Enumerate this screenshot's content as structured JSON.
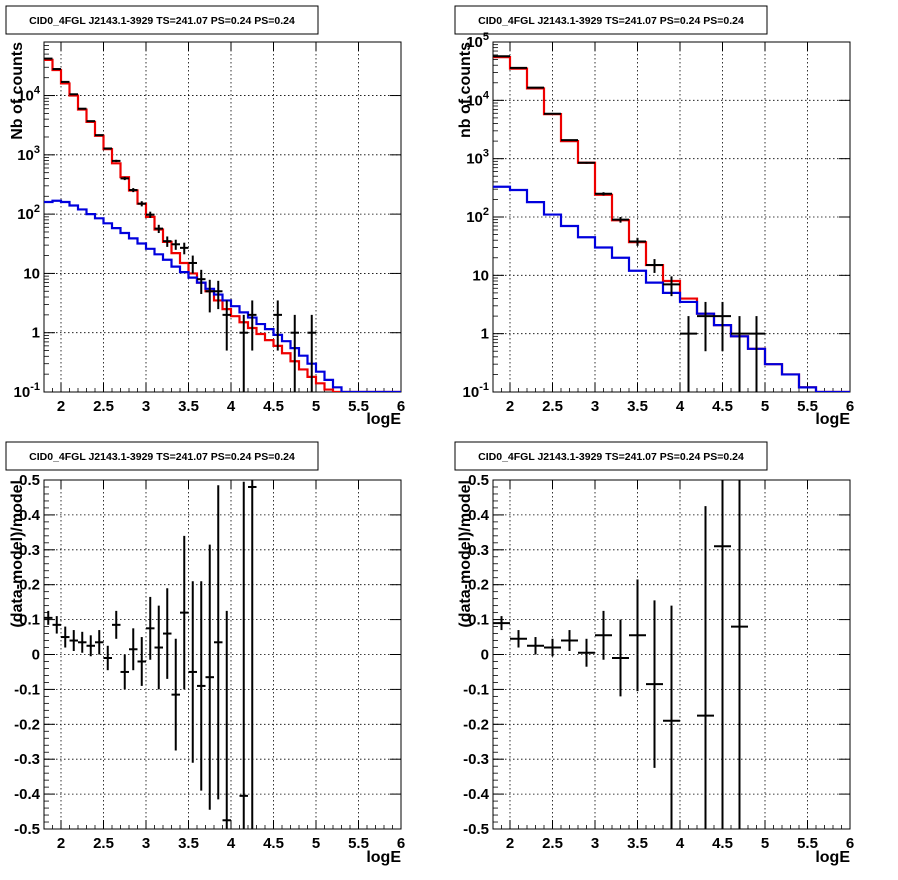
{
  "colors": {
    "data": "#000000",
    "total_model": "#ee0000",
    "source_model": "#0000dd",
    "grid": "#000000"
  },
  "chart_data": [
    {
      "type": "step",
      "title": "CID0_4FGL J2143.1-3929 TS=241.07 PS=0.24 PS=0.24",
      "xlabel": "logE",
      "ylabel": "Nb of counts",
      "xlim": [
        1.8,
        6
      ],
      "ylim": [
        0.1,
        80000
      ],
      "yscale": "log",
      "grid": true,
      "xticks": [
        "2",
        "2.5",
        "3",
        "3.5",
        "4",
        "4.5",
        "5",
        "5.5",
        "6"
      ],
      "yticks": [
        "10^-1",
        "1",
        "10",
        "10^2",
        "10^3",
        "10^4"
      ],
      "bin_edges": [
        1.8,
        1.9,
        2.0,
        2.1,
        2.2,
        2.3,
        2.4,
        2.5,
        2.6,
        2.7,
        2.8,
        2.9,
        3.0,
        3.1,
        3.2,
        3.3,
        3.4,
        3.5,
        3.6,
        3.7,
        3.8,
        3.9,
        4.0,
        4.1,
        4.2,
        4.3,
        4.4,
        4.5,
        4.6,
        4.7,
        4.8,
        4.9,
        5.0,
        5.1,
        5.2,
        5.3,
        5.4,
        5.5,
        5.6,
        5.7,
        5.8,
        5.9,
        6.0
      ],
      "series": [
        {
          "role": "total_model",
          "values": [
            40000,
            27000,
            16000,
            10000,
            5800,
            3600,
            2100,
            1250,
            720,
            420,
            250,
            150,
            90,
            55,
            34,
            22,
            15,
            10,
            7,
            5,
            3.5,
            2.5,
            1.9,
            1.5,
            1.2,
            0.95,
            0.75,
            0.6,
            0.45,
            0.33,
            0.24,
            0.18,
            0.14,
            0.11,
            0.1,
            0.1,
            0.1,
            0.1,
            0.1,
            0.1,
            0.1,
            0.1
          ]
        },
        {
          "role": "source_model",
          "values": [
            160,
            168,
            160,
            140,
            120,
            100,
            85,
            70,
            58,
            48,
            39,
            32,
            26,
            21,
            17,
            13,
            10.5,
            8.5,
            7,
            5.5,
            4.4,
            3.5,
            2.8,
            2.2,
            1.8,
            1.4,
            1.15,
            0.92,
            0.72,
            0.55,
            0.41,
            0.3,
            0.22,
            0.16,
            0.12,
            0.1,
            0.1,
            0.1,
            0.1,
            0.1,
            0.1,
            0.1
          ]
        },
        {
          "role": "data",
          "points": [
            {
              "x": 1.85,
              "y": 42000,
              "err": 300
            },
            {
              "x": 1.95,
              "y": 28000,
              "err": 250
            },
            {
              "x": 2.05,
              "y": 17000,
              "err": 200
            },
            {
              "x": 2.15,
              "y": 10500,
              "err": 150
            },
            {
              "x": 2.25,
              "y": 6000,
              "err": 100
            },
            {
              "x": 2.35,
              "y": 3700,
              "err": 80
            },
            {
              "x": 2.45,
              "y": 2150,
              "err": 60
            },
            {
              "x": 2.55,
              "y": 1280,
              "err": 45
            },
            {
              "x": 2.65,
              "y": 790,
              "err": 35
            },
            {
              "x": 2.75,
              "y": 400,
              "err": 25
            },
            {
              "x": 2.85,
              "y": 255,
              "err": 20
            },
            {
              "x": 2.95,
              "y": 150,
              "err": 15
            },
            {
              "x": 3.05,
              "y": 98,
              "err": 12
            },
            {
              "x": 3.15,
              "y": 57,
              "err": 9
            },
            {
              "x": 3.25,
              "y": 35,
              "err": 7
            },
            {
              "x": 3.35,
              "y": 31,
              "err": 6
            },
            {
              "x": 3.45,
              "y": 27,
              "err": 6
            },
            {
              "x": 3.55,
              "y": 15,
              "err": 5
            },
            {
              "x": 3.65,
              "y": 8,
              "err": 3.5
            },
            {
              "x": 3.75,
              "y": 5,
              "err": 2.8
            },
            {
              "x": 3.85,
              "y": 5,
              "err": 2.5
            },
            {
              "x": 3.95,
              "y": 2,
              "err": 1.5
            },
            {
              "x": 4.15,
              "y": 1,
              "err": 1
            },
            {
              "x": 4.25,
              "y": 2,
              "err": 1.5
            },
            {
              "x": 4.55,
              "y": 2,
              "err": 1.5
            },
            {
              "x": 4.75,
              "y": 1,
              "err": 1
            },
            {
              "x": 4.95,
              "y": 1,
              "err": 1
            }
          ]
        }
      ]
    },
    {
      "type": "step",
      "title": "CID0_4FGL J2143.1-3929 TS=241.07 PS=0.24 PS=0.24",
      "xlabel": "logE",
      "ylabel": "nb of counts",
      "xlim": [
        1.8,
        6
      ],
      "ylim": [
        0.1,
        100000
      ],
      "yscale": "log",
      "grid": true,
      "xticks": [
        "2",
        "2.5",
        "3",
        "3.5",
        "4",
        "4.5",
        "5",
        "5.5",
        "6"
      ],
      "yticks": [
        "10^-1",
        "1",
        "10",
        "10^2",
        "10^3",
        "10^4",
        "10^5"
      ],
      "bin_edges": [
        1.8,
        2.0,
        2.2,
        2.4,
        2.6,
        2.8,
        3.0,
        3.2,
        3.4,
        3.6,
        3.8,
        4.0,
        4.2,
        4.4,
        4.6,
        4.8,
        5.0,
        5.2,
        5.4,
        5.6,
        5.8,
        6.0
      ],
      "series": [
        {
          "role": "total_model",
          "values": [
            55000,
            35000,
            16000,
            5800,
            2000,
            850,
            240,
            88,
            37,
            15,
            8,
            4,
            2.2,
            1.4,
            0.9,
            0.55,
            0.3,
            0.2,
            0.12,
            0.1,
            0.1
          ]
        },
        {
          "role": "source_model",
          "values": [
            330,
            290,
            180,
            110,
            70,
            45,
            30,
            20,
            12,
            7.5,
            5,
            3.5,
            2.2,
            1.4,
            0.9,
            0.55,
            0.3,
            0.2,
            0.12,
            0.1,
            0.1
          ]
        },
        {
          "role": "data",
          "points": [
            {
              "x": 1.9,
              "y": 57000,
              "err": 350
            },
            {
              "x": 2.1,
              "y": 36000,
              "err": 250
            },
            {
              "x": 2.3,
              "y": 16500,
              "err": 150
            },
            {
              "x": 2.5,
              "y": 5900,
              "err": 90
            },
            {
              "x": 2.7,
              "y": 2080,
              "err": 50
            },
            {
              "x": 2.9,
              "y": 850,
              "err": 30
            },
            {
              "x": 3.1,
              "y": 250,
              "err": 16
            },
            {
              "x": 3.3,
              "y": 90,
              "err": 10
            },
            {
              "x": 3.5,
              "y": 38,
              "err": 6
            },
            {
              "x": 3.7,
              "y": 15,
              "err": 4
            },
            {
              "x": 3.9,
              "y": 7,
              "err": 2.6
            },
            {
              "x": 4.1,
              "y": 1,
              "err": 1
            },
            {
              "x": 4.3,
              "y": 2,
              "err": 1.5
            },
            {
              "x": 4.5,
              "y": 2,
              "err": 1.5
            },
            {
              "x": 4.7,
              "y": 1,
              "err": 1
            },
            {
              "x": 4.9,
              "y": 1,
              "err": 1
            }
          ]
        }
      ]
    },
    {
      "type": "scatter",
      "title": "CID0_4FGL J2143.1-3929 TS=241.07 PS=0.24 PS=0.24",
      "xlabel": "logE",
      "ylabel": "(data-model)/model",
      "xlim": [
        1.8,
        6
      ],
      "ylim": [
        -0.5,
        0.5
      ],
      "grid": true,
      "xticks": [
        "2",
        "2.5",
        "3",
        "3.5",
        "4",
        "4.5",
        "5",
        "5.5",
        "6"
      ],
      "yticks": [
        "-0.5",
        "-0.4",
        "-0.3",
        "-0.2",
        "-0.1",
        "0",
        "0.1",
        "0.2",
        "0.3",
        "0.4",
        "0.5"
      ],
      "bin_width": 0.1,
      "points": [
        {
          "x": 1.85,
          "y": 0.105,
          "err": 0.02
        },
        {
          "x": 1.95,
          "y": 0.085,
          "err": 0.025
        },
        {
          "x": 2.05,
          "y": 0.05,
          "err": 0.03
        },
        {
          "x": 2.15,
          "y": 0.04,
          "err": 0.03
        },
        {
          "x": 2.25,
          "y": 0.035,
          "err": 0.03
        },
        {
          "x": 2.35,
          "y": 0.025,
          "err": 0.03
        },
        {
          "x": 2.45,
          "y": 0.035,
          "err": 0.035
        },
        {
          "x": 2.55,
          "y": -0.01,
          "err": 0.035
        },
        {
          "x": 2.65,
          "y": 0.085,
          "err": 0.04
        },
        {
          "x": 2.75,
          "y": -0.05,
          "err": 0.05
        },
        {
          "x": 2.85,
          "y": 0.015,
          "err": 0.06
        },
        {
          "x": 2.95,
          "y": -0.02,
          "err": 0.07
        },
        {
          "x": 3.05,
          "y": 0.075,
          "err": 0.09
        },
        {
          "x": 3.15,
          "y": 0.02,
          "err": 0.12
        },
        {
          "x": 3.25,
          "y": 0.06,
          "err": 0.13
        },
        {
          "x": 3.35,
          "y": -0.115,
          "err": 0.16
        },
        {
          "x": 3.45,
          "y": 0.12,
          "err": 0.22
        },
        {
          "x": 3.55,
          "y": -0.05,
          "err": 0.26
        },
        {
          "x": 3.65,
          "y": -0.09,
          "err": 0.3
        },
        {
          "x": 3.75,
          "y": -0.065,
          "err": 0.38
        },
        {
          "x": 3.85,
          "y": 0.035,
          "err": 0.45
        },
        {
          "x": 3.95,
          "y": -0.475,
          "err": 0.6
        },
        {
          "x": 4.15,
          "y": -0.405,
          "err": 0.9
        },
        {
          "x": 4.25,
          "y": 0.48,
          "err": 1.2
        }
      ]
    },
    {
      "type": "scatter",
      "title": "CID0_4FGL J2143.1-3929 TS=241.07 PS=0.24 PS=0.24",
      "xlabel": "logE",
      "ylabel": "(data-model)/model",
      "xlim": [
        1.8,
        6
      ],
      "ylim": [
        -0.5,
        0.5
      ],
      "grid": true,
      "xticks": [
        "2",
        "2.5",
        "3",
        "3.5",
        "4",
        "4.5",
        "5",
        "5.5",
        "6"
      ],
      "yticks": [
        "-0.5",
        "-0.4",
        "-0.3",
        "-0.2",
        "-0.1",
        "0",
        "0.1",
        "0.2",
        "0.3",
        "0.4",
        "0.5"
      ],
      "bin_width": 0.2,
      "points": [
        {
          "x": 1.9,
          "y": 0.09,
          "err": 0.02
        },
        {
          "x": 2.1,
          "y": 0.045,
          "err": 0.025
        },
        {
          "x": 2.3,
          "y": 0.025,
          "err": 0.025
        },
        {
          "x": 2.5,
          "y": 0.02,
          "err": 0.025
        },
        {
          "x": 2.7,
          "y": 0.04,
          "err": 0.03
        },
        {
          "x": 2.9,
          "y": 0.005,
          "err": 0.04
        },
        {
          "x": 3.1,
          "y": 0.055,
          "err": 0.07
        },
        {
          "x": 3.3,
          "y": -0.01,
          "err": 0.11
        },
        {
          "x": 3.5,
          "y": 0.055,
          "err": 0.16
        },
        {
          "x": 3.7,
          "y": -0.085,
          "err": 0.24
        },
        {
          "x": 3.9,
          "y": -0.19,
          "err": 0.33
        },
        {
          "x": 4.3,
          "y": -0.175,
          "err": 0.6
        },
        {
          "x": 4.5,
          "y": 0.31,
          "err": 0.85
        },
        {
          "x": 4.7,
          "y": 0.08,
          "err": 0.9
        }
      ]
    }
  ]
}
